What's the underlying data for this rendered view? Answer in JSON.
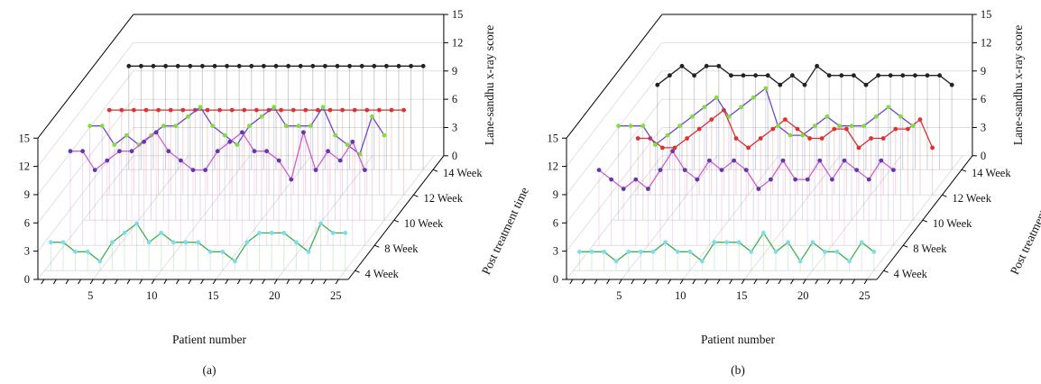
{
  "colors": {
    "4 Week": "#3cb44b",
    "8 Week": "#d45ccc",
    "10 Week": "#6a4bc8",
    "12 Week": "#d93030",
    "14 Week": "#222222",
    "marker_4 Week": "#7fdcee",
    "marker_8 Week": "#5a3cb0",
    "marker_10 Week": "#7ee03a",
    "marker_12 Week": "#e03030",
    "marker_14 Week": "#222222"
  },
  "chart_data": [
    {
      "panel_label": "(a)",
      "type": "line",
      "subtype": "3d-stacked-lines",
      "xlabel": "Patient number",
      "ylabel": "Post treatment time",
      "zlabel": "Lane-sandhu x-ray score",
      "x_ticks": [
        "5",
        "10",
        "15",
        "20",
        "25"
      ],
      "y_ticks": [
        "4 Week",
        "8 Week",
        "10 Week",
        "12 Week",
        "14 Week"
      ],
      "z_ticks": [
        "0",
        "3",
        "6",
        "9",
        "12",
        "15"
      ],
      "x": [
        1,
        2,
        3,
        4,
        5,
        6,
        7,
        8,
        9,
        10,
        11,
        12,
        13,
        14,
        15,
        16,
        17,
        18,
        19,
        20,
        21,
        22,
        23,
        24,
        25
      ],
      "zlim": [
        0,
        15
      ],
      "series": [
        {
          "name": "4 Week",
          "values": [
            3,
            3,
            2,
            2,
            1,
            3,
            4,
            5,
            3,
            4,
            3,
            3,
            3,
            2,
            2,
            1,
            3,
            4,
            4,
            4,
            3,
            2,
            5,
            4,
            4
          ]
        },
        {
          "name": "8 Week",
          "values": [
            10,
            10,
            8,
            9,
            10,
            10,
            11,
            12,
            10,
            9,
            8,
            8,
            10,
            11,
            12,
            10,
            10,
            9,
            7,
            12,
            8,
            10,
            9,
            11,
            8
          ]
        },
        {
          "name": "10 Week",
          "values": [
            10,
            10,
            8,
            9,
            8,
            9,
            10,
            10,
            11,
            12,
            10,
            9,
            8,
            10,
            11,
            12,
            10,
            10,
            10,
            12,
            9,
            8,
            7,
            11,
            9
          ]
        },
        {
          "name": "12 Week",
          "values": [
            9,
            9,
            9,
            9,
            9,
            9,
            9,
            9,
            9,
            9,
            9,
            9,
            9,
            9,
            9,
            9,
            9,
            9,
            9,
            9,
            9,
            9,
            9,
            9,
            9
          ]
        },
        {
          "name": "14 Week",
          "values": [
            11,
            11,
            11,
            11,
            11,
            11,
            11,
            11,
            11,
            11,
            11,
            11,
            11,
            11,
            11,
            11,
            11,
            11,
            11,
            11,
            11,
            11,
            11,
            11,
            11
          ]
        }
      ]
    },
    {
      "panel_label": "(b)",
      "type": "line",
      "subtype": "3d-stacked-lines",
      "xlabel": "Patient number",
      "ylabel": "Post treatment time",
      "zlabel": "Lane-sandhu x-ray score",
      "x_ticks": [
        "5",
        "10",
        "15",
        "20",
        "25"
      ],
      "y_ticks": [
        "4 Week",
        "8 Week",
        "10 Week",
        "12 Week",
        "14 Week"
      ],
      "z_ticks": [
        "0",
        "3",
        "6",
        "9",
        "12",
        "15"
      ],
      "x": [
        1,
        2,
        3,
        4,
        5,
        6,
        7,
        8,
        9,
        10,
        11,
        12,
        13,
        14,
        15,
        16,
        17,
        18,
        19,
        20,
        21,
        22,
        23,
        24,
        25
      ],
      "zlim": [
        0,
        15
      ],
      "series": [
        {
          "name": "4 Week",
          "values": [
            2,
            2,
            2,
            1,
            2,
            2,
            2,
            3,
            2,
            2,
            1,
            3,
            3,
            3,
            2,
            4,
            2,
            3,
            1,
            3,
            2,
            2,
            1,
            3,
            2
          ]
        },
        {
          "name": "8 Week",
          "values": [
            8,
            7,
            6,
            7,
            6,
            8,
            10,
            8,
            7,
            9,
            8,
            9,
            8,
            6,
            7,
            9,
            7,
            7,
            9,
            7,
            9,
            8,
            7,
            9,
            8
          ]
        },
        {
          "name": "10 Week",
          "values": [
            10,
            10,
            10,
            8,
            9,
            10,
            11,
            12,
            13,
            11,
            12,
            13,
            14,
            10,
            9,
            9,
            10,
            11,
            10,
            10,
            10,
            11,
            12,
            11,
            10
          ]
        },
        {
          "name": "12 Week",
          "values": [
            6,
            6,
            5,
            5,
            6,
            7,
            8,
            9,
            6,
            5,
            6,
            7,
            8,
            7,
            6,
            6,
            7,
            7,
            5,
            6,
            6,
            7,
            7,
            8,
            5
          ]
        },
        {
          "name": "14 Week",
          "values": [
            9,
            10,
            11,
            10,
            11,
            11,
            10,
            10,
            10,
            10,
            9,
            10,
            9,
            11,
            10,
            10,
            10,
            9,
            10,
            10,
            10,
            10,
            10,
            10,
            9
          ]
        }
      ]
    }
  ]
}
